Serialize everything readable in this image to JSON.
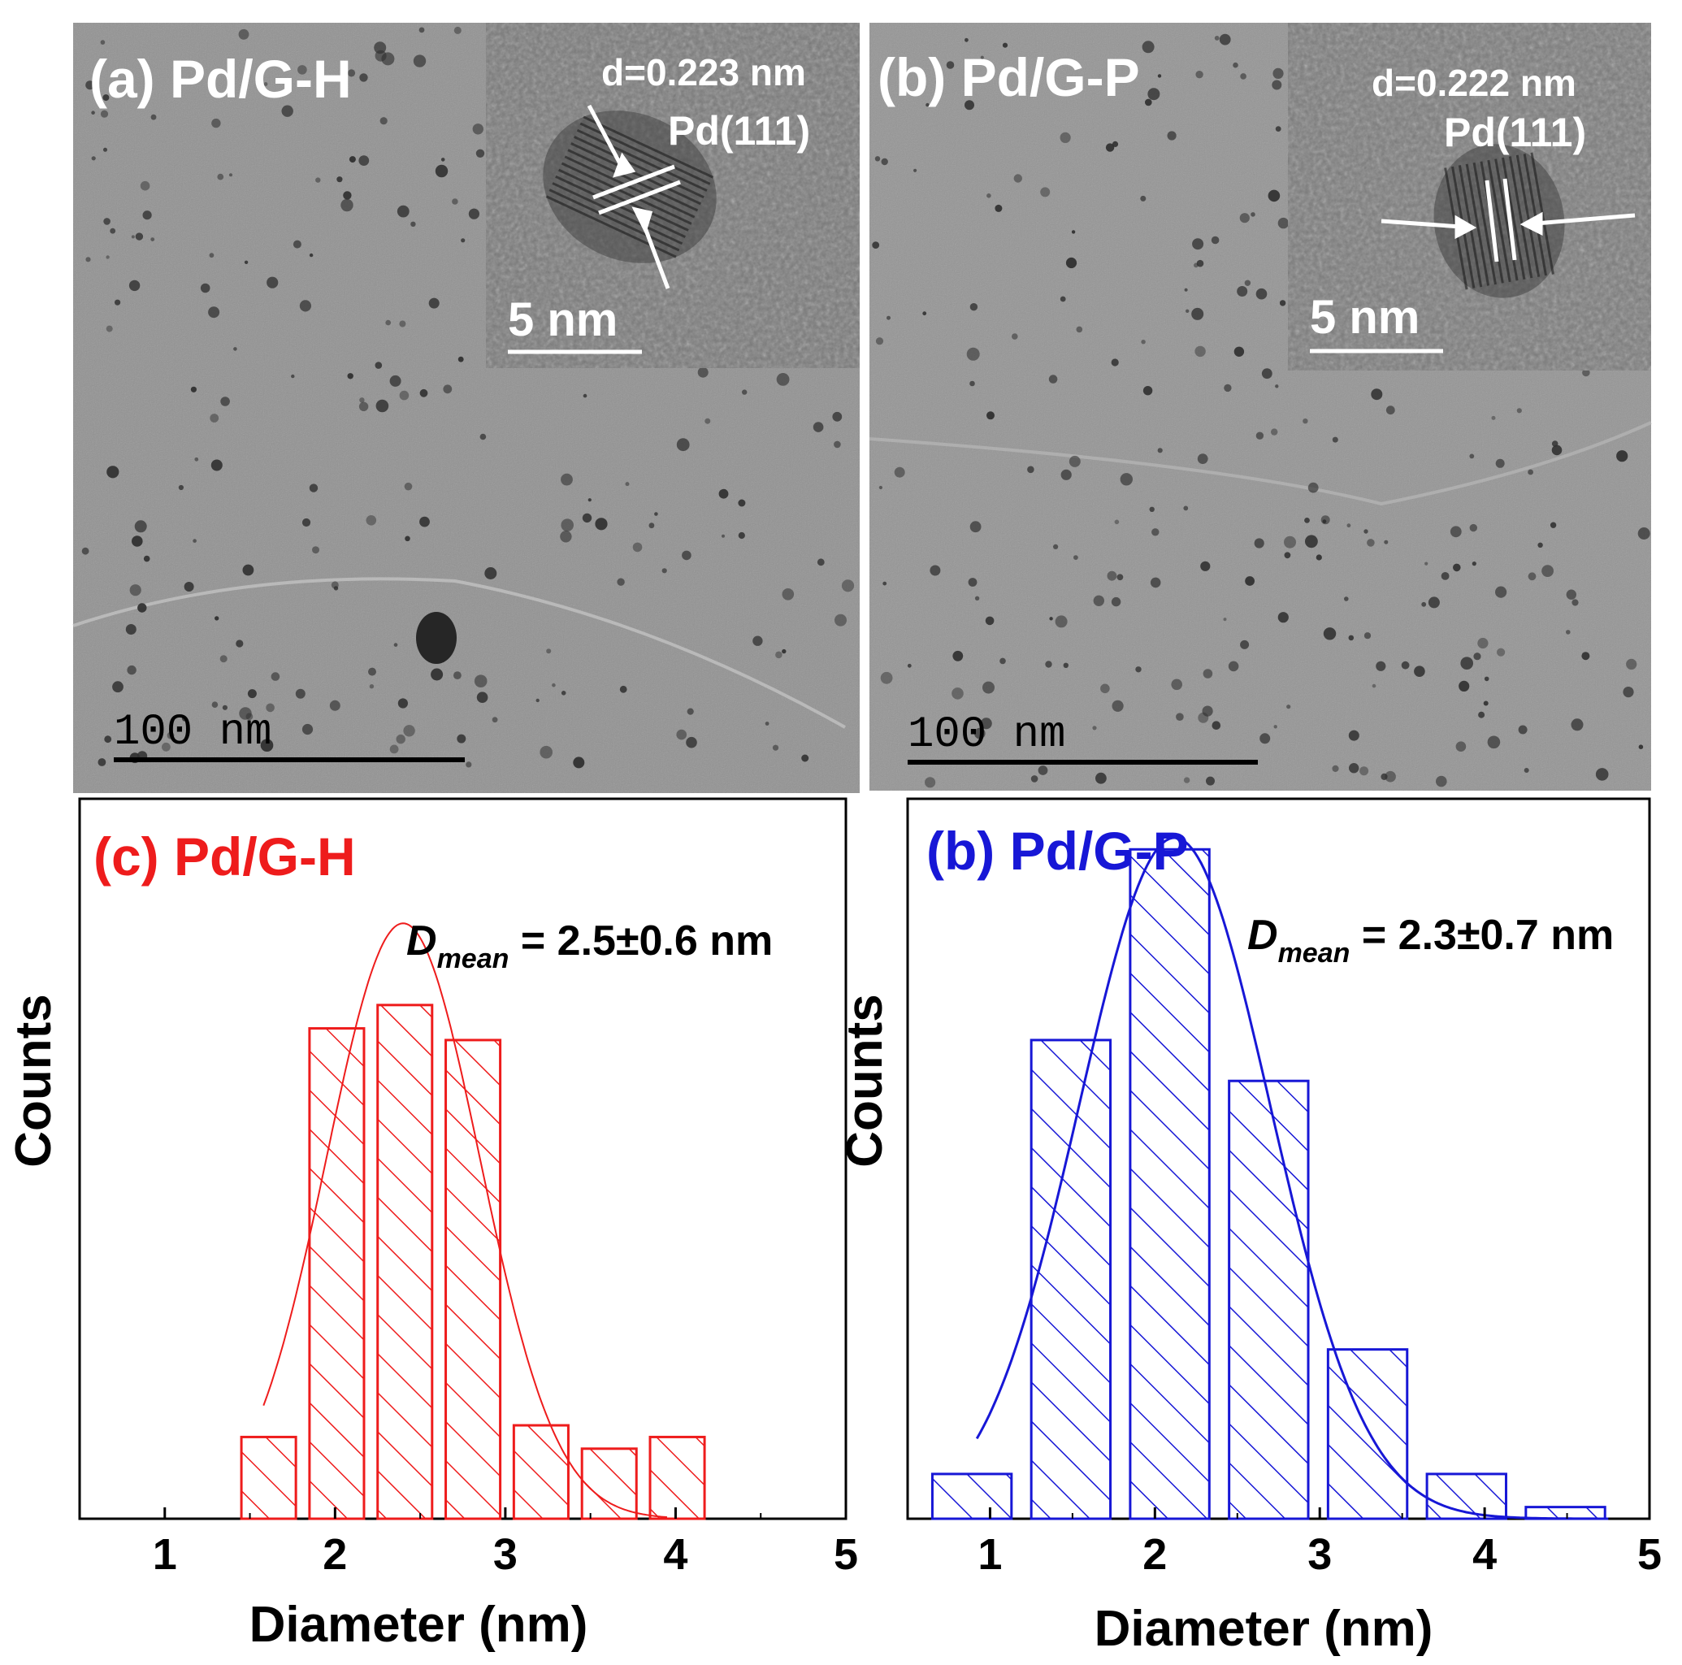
{
  "panels": [
    {
      "id": "a",
      "label": "(a) Pd/G-H",
      "scale_bar": "100 nm",
      "inset": {
        "d_spacing": "d=0.223 nm",
        "plane": "Pd(111)",
        "scale_bar": "5 nm"
      }
    },
    {
      "id": "b",
      "label": "(b) Pd/G-P",
      "scale_bar": "100 nm",
      "inset": {
        "d_spacing": "d=0.222 nm",
        "plane": "Pd(111)",
        "scale_bar": "5 nm"
      }
    }
  ],
  "colors": {
    "red": "#ee1c1c",
    "blue": "#1717d6",
    "tem_background": "#8f8f8f"
  },
  "chart_data": [
    {
      "type": "bar",
      "title": "(c) Pd/G-H",
      "annotation": {
        "symbol": "D",
        "subscript": "mean",
        "value": " = 2.5±0.6 nm"
      },
      "xlabel": "Diameter (nm)",
      "ylabel": "Counts",
      "xlim": [
        0.5,
        5
      ],
      "ylim": [
        0,
        37
      ],
      "xticks": [
        "1",
        "2",
        "3",
        "4",
        "5"
      ],
      "bins": [
        {
          "x0": 1.45,
          "x1": 1.77,
          "count": 4.2
        },
        {
          "x0": 1.85,
          "x1": 2.17,
          "count": 25.2
        },
        {
          "x0": 2.25,
          "x1": 2.57,
          "count": 26.4
        },
        {
          "x0": 2.65,
          "x1": 2.97,
          "count": 24.6
        },
        {
          "x0": 3.05,
          "x1": 3.37,
          "count": 4.8
        },
        {
          "x0": 3.45,
          "x1": 3.77,
          "count": 3.6
        },
        {
          "x0": 3.85,
          "x1": 4.17,
          "count": 4.2
        }
      ],
      "fit": {
        "mean": 2.4,
        "sigma": 0.45,
        "peak": 30.6,
        "x_range": [
          1.58,
          3.95
        ]
      },
      "color": "#ee1c1c"
    },
    {
      "type": "bar",
      "title": "(b) Pd/G-P",
      "annotation": {
        "symbol": "D",
        "subscript": "mean",
        "value": " = 2.3±0.7 nm"
      },
      "xlabel": "Diameter (nm)",
      "ylabel": "Counts",
      "xlim": [
        0.5,
        5
      ],
      "ylim": [
        0,
        37
      ],
      "xticks": [
        "1",
        "2",
        "3",
        "4",
        "5"
      ],
      "bins": [
        {
          "x0": 0.65,
          "x1": 1.13,
          "count": 2.3
        },
        {
          "x0": 1.25,
          "x1": 1.73,
          "count": 24.6
        },
        {
          "x0": 1.85,
          "x1": 2.33,
          "count": 34.4
        },
        {
          "x0": 2.45,
          "x1": 2.93,
          "count": 22.5
        },
        {
          "x0": 3.05,
          "x1": 3.53,
          "count": 8.7
        },
        {
          "x0": 3.65,
          "x1": 4.13,
          "count": 2.3
        },
        {
          "x0": 4.25,
          "x1": 4.73,
          "count": 0.6
        }
      ],
      "fit": {
        "mean": 2.12,
        "sigma": 0.58,
        "peak": 35.0,
        "x_range": [
          0.92,
          4.75
        ]
      },
      "color": "#1717d6"
    }
  ]
}
